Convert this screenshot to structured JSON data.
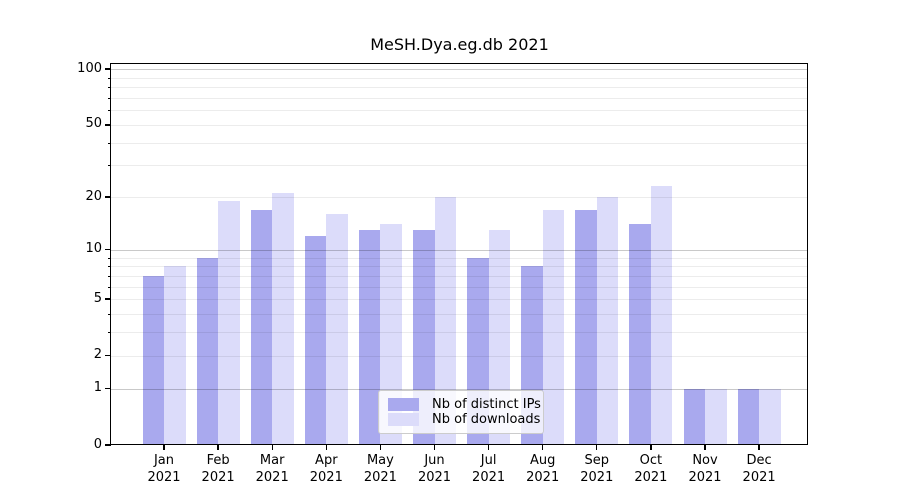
{
  "chart_data": {
    "type": "bar",
    "title": "MeSH.Dya.eg.db 2021",
    "y_scale": "log10(1+y)",
    "ylim": [
      0,
      106
    ],
    "grid": true,
    "y_ticks": [
      0,
      1,
      2,
      5,
      10,
      20,
      50,
      100
    ],
    "y_major_gridlines": [
      1,
      10,
      100
    ],
    "y_minor_gridlines": [
      2,
      3,
      4,
      5,
      6,
      7,
      8,
      9,
      20,
      30,
      40,
      50,
      60,
      70,
      80,
      90
    ],
    "x_tick_labels": [
      [
        "Jan",
        "2021"
      ],
      [
        "Feb",
        "2021"
      ],
      [
        "Mar",
        "2021"
      ],
      [
        "Apr",
        "2021"
      ],
      [
        "May",
        "2021"
      ],
      [
        "Jun",
        "2021"
      ],
      [
        "Jul",
        "2021"
      ],
      [
        "Aug",
        "2021"
      ],
      [
        "Sep",
        "2021"
      ],
      [
        "Oct",
        "2021"
      ],
      [
        "Nov",
        "2021"
      ],
      [
        "Dec",
        "2021"
      ]
    ],
    "series": [
      {
        "name": "Nb of distinct IPs",
        "slug": "distinct-ips",
        "color": "#a9a9ee",
        "values": [
          7,
          9,
          17,
          12,
          13,
          13,
          9,
          8,
          17,
          14,
          1,
          1
        ]
      },
      {
        "name": "Nb of downloads",
        "slug": "downloads",
        "color": "#dcdcfa",
        "values": [
          8,
          19,
          21,
          16,
          14,
          20,
          13,
          17,
          20,
          23,
          1,
          1
        ]
      }
    ],
    "legend": {
      "position": "bottom-center",
      "entries": [
        "Nb of distinct IPs",
        "Nb of downloads"
      ]
    }
  },
  "colors": {
    "background": "#ffffff",
    "spine": "#000000",
    "major_gridline": "#c9c9c9",
    "minor_gridline": "#ebebeb",
    "bar_distinct_ips": "#a9a9ee",
    "bar_downloads": "#dcdcfa",
    "legend_border": "#cccccc"
  }
}
